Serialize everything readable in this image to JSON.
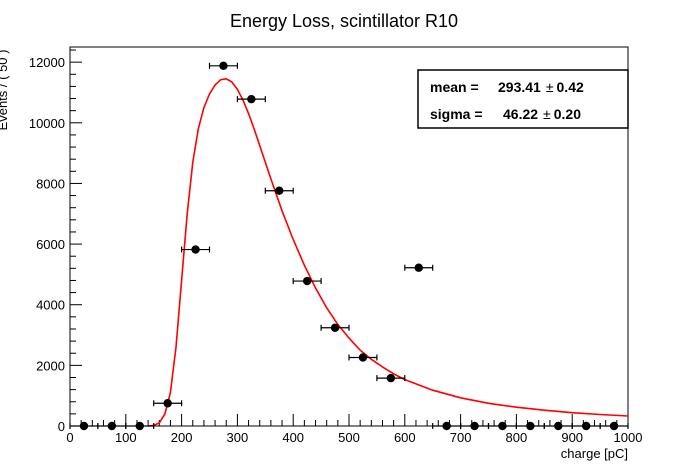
{
  "chart_data": {
    "type": "scatter",
    "title": "Energy Loss, scintillator R10",
    "xlabel": "charge [pC]",
    "ylabel": "Events / ( 50 )",
    "xlim": [
      0,
      1000
    ],
    "ylim": [
      0,
      12500
    ],
    "xticks": [
      0,
      100,
      200,
      300,
      400,
      500,
      600,
      700,
      800,
      900,
      1000
    ],
    "yticks": [
      0,
      2000,
      4000,
      6000,
      8000,
      10000,
      12000
    ],
    "x_error": 25,
    "points": [
      {
        "x": 25,
        "y": 0
      },
      {
        "x": 75,
        "y": 0
      },
      {
        "x": 125,
        "y": 0
      },
      {
        "x": 175,
        "y": 750
      },
      {
        "x": 225,
        "y": 5820
      },
      {
        "x": 275,
        "y": 11880
      },
      {
        "x": 325,
        "y": 10780
      },
      {
        "x": 375,
        "y": 7760
      },
      {
        "x": 425,
        "y": 4780
      },
      {
        "x": 475,
        "y": 3240
      },
      {
        "x": 525,
        "y": 2260
      },
      {
        "x": 575,
        "y": 1580
      },
      {
        "x": 625,
        "y": 5220
      },
      {
        "x": 675,
        "y": 0
      },
      {
        "x": 725,
        "y": 0
      },
      {
        "x": 775,
        "y": 0
      },
      {
        "x": 825,
        "y": 0
      },
      {
        "x": 875,
        "y": 0
      },
      {
        "x": 925,
        "y": 0
      },
      {
        "x": 975,
        "y": 0
      }
    ],
    "fit": {
      "color": "#ff0000",
      "x": [
        140,
        150,
        160,
        170,
        180,
        190,
        200,
        210,
        220,
        230,
        240,
        250,
        260,
        270,
        280,
        290,
        300,
        310,
        320,
        330,
        340,
        350,
        360,
        380,
        400,
        420,
        440,
        460,
        480,
        500,
        520,
        540,
        560,
        580,
        600,
        650,
        700,
        750,
        800,
        850,
        900,
        950,
        1000
      ],
      "y": [
        0,
        20,
        100,
        400,
        1100,
        2600,
        4800,
        7000,
        8700,
        9800,
        10500,
        10950,
        11250,
        11420,
        11450,
        11350,
        11100,
        10750,
        10300,
        9800,
        9250,
        8700,
        8150,
        7100,
        6150,
        5300,
        4550,
        3900,
        3350,
        2900,
        2500,
        2200,
        1950,
        1720,
        1530,
        1180,
        930,
        750,
        620,
        520,
        440,
        380,
        330
      ]
    },
    "stats": {
      "mean_label": "mean = ",
      "mean_value": "293.41",
      "mean_error": "0.42",
      "sigma_label": "sigma = ",
      "sigma_value": "46.22",
      "sigma_error": "0.20",
      "pm": "±"
    },
    "grid": false,
    "marker_color": "#000000"
  }
}
